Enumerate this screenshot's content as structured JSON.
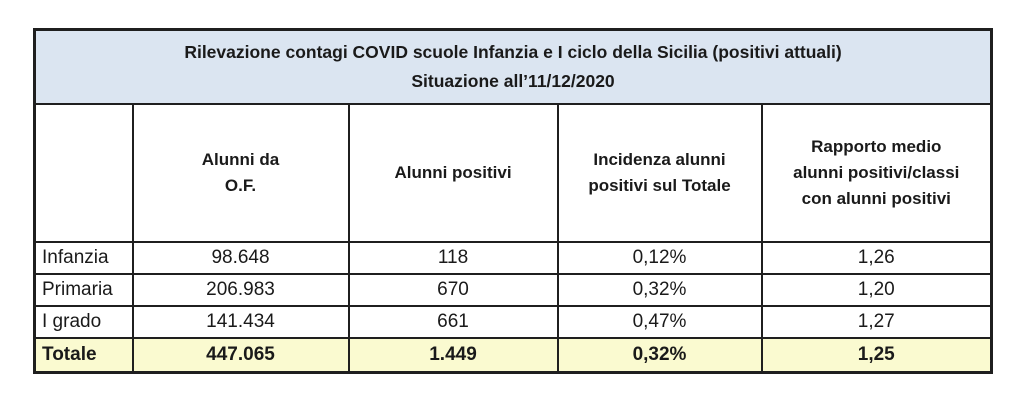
{
  "table": {
    "title_lines": [
      "Rilevazione contagi COVID scuole Infanzia e I ciclo della Sicilia (positivi attuali)",
      "Situazione all’11/12/2020"
    ],
    "columns": [
      [
        ""
      ],
      [
        "Alunni da",
        "O.F."
      ],
      [
        "Alunni positivi"
      ],
      [
        "Incidenza alunni",
        "positivi sul Totale"
      ],
      [
        "Rapporto medio",
        "alunni positivi/classi",
        "con alunni positivi"
      ]
    ],
    "rows": [
      [
        "Infanzia",
        "98.648",
        "118",
        "0,12%",
        "1,26"
      ],
      [
        "Primaria",
        "206.983",
        "670",
        "0,32%",
        "1,20"
      ],
      [
        "I grado",
        "141.434",
        "661",
        "0,47%",
        "1,27"
      ]
    ],
    "total_row": [
      "Totale",
      "447.065",
      "1.449",
      "0,32%",
      "1,25"
    ],
    "colors": {
      "title_background": "#dbe5f1",
      "total_row_background": "#fafad0",
      "border": "#1f1f1f"
    }
  },
  "chart_data": {
    "type": "table",
    "title": "Rilevazione contagi COVID scuole Infanzia e I ciclo della Sicilia (positivi attuali) — Situazione all’11/12/2020",
    "columns": [
      "",
      "Alunni da O.F.",
      "Alunni positivi",
      "Incidenza alunni positivi sul Totale",
      "Rapporto medio alunni positivi/classi con alunni positivi"
    ],
    "rows": [
      {
        "categoria": "Infanzia",
        "alunni_da_of": 98648,
        "alunni_positivi": 118,
        "incidenza": "0,12%",
        "rapporto_medio": 1.26
      },
      {
        "categoria": "Primaria",
        "alunni_da_of": 206983,
        "alunni_positivi": 670,
        "incidenza": "0,32%",
        "rapporto_medio": 1.2
      },
      {
        "categoria": "I grado",
        "alunni_da_of": 141434,
        "alunni_positivi": 661,
        "incidenza": "0,47%",
        "rapporto_medio": 1.27
      },
      {
        "categoria": "Totale",
        "alunni_da_of": 447065,
        "alunni_positivi": 1449,
        "incidenza": "0,32%",
        "rapporto_medio": 1.25
      }
    ]
  }
}
